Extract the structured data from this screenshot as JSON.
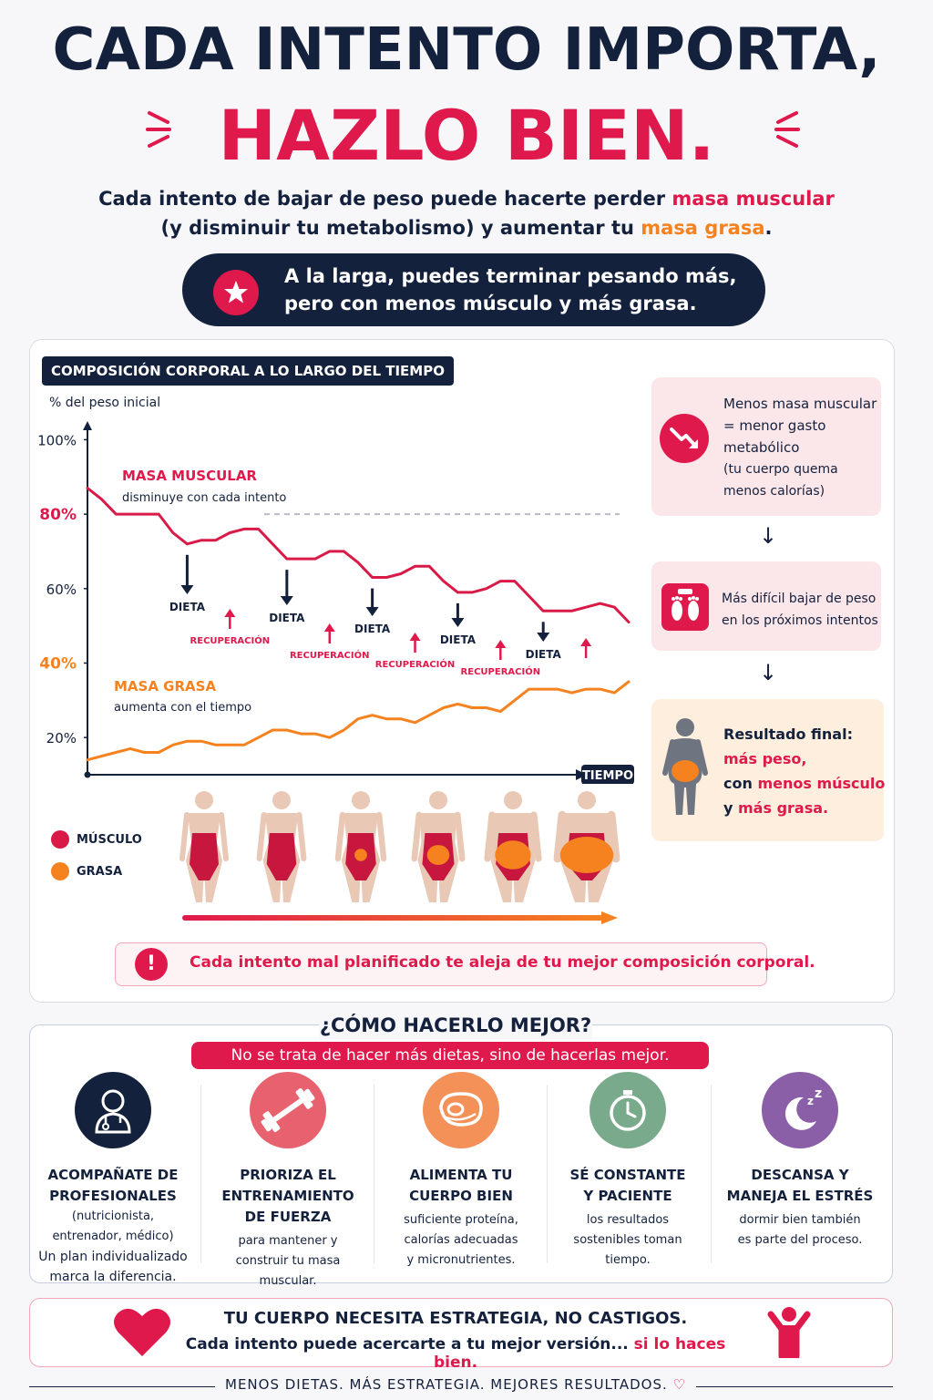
{
  "header": {
    "title_line1": "CADA INTENTO IMPORTA,",
    "title_line2": "HAZLO BIEN.",
    "subtitle_part1": "Cada intento de bajar de peso puede hacerte perder ",
    "subtitle_highlight1": "masa muscular",
    "subtitle_part2": "(y disminuir tu metabolismo) y aumentar tu ",
    "subtitle_highlight2": "masa grasa",
    "subtitle_end": ".",
    "banner_line1": "A la larga, puedes terminar pesando más,",
    "banner_line2": "pero con menos músculo y más grasa."
  },
  "chart": {
    "title": "COMPOSICIÓN CORPORAL A LO LARGO DEL TIEMPO",
    "y_axis_title": "% del peso inicial",
    "x_axis_label": "TIEMPO",
    "muscle_label": "MASA MUSCULAR",
    "muscle_caption": "disminuye con cada intento",
    "fat_label": "MASA GRASA",
    "fat_caption": "aumenta con el tiempo",
    "diet_label": "DIETA",
    "recovery_label": "RECUPERACIÓN"
  },
  "chart_data": {
    "type": "line",
    "xlabel": "TIEMPO",
    "ylabel": "% del peso inicial",
    "ylim": [
      10,
      105
    ],
    "y_ticks": [
      "100%",
      "80%",
      "60%",
      "40%",
      "20%"
    ],
    "y_tick_values": [
      100,
      80,
      60,
      40,
      20
    ],
    "highlighted_ticks": [
      "80%",
      "40%"
    ],
    "x": [
      0,
      1,
      2,
      3,
      4,
      5,
      6,
      7,
      8,
      9,
      10,
      11,
      12,
      13,
      14,
      15,
      16,
      17,
      18,
      19,
      20,
      21,
      22,
      23,
      24,
      25,
      26,
      27,
      28,
      29,
      30,
      31,
      32,
      33,
      34,
      35,
      36,
      37,
      38
    ],
    "series": [
      {
        "name": "MASA MUSCULAR",
        "color": "#d91a47",
        "values": [
          87,
          84,
          80,
          80,
          80,
          80,
          75,
          72,
          73,
          73,
          75,
          76,
          76,
          72,
          68,
          68,
          68,
          70,
          70,
          67,
          63,
          63,
          64,
          66,
          66,
          62,
          59,
          59,
          60,
          62,
          62,
          58,
          54,
          54,
          54,
          55,
          56,
          55,
          51
        ]
      },
      {
        "name": "MASA GRASA",
        "color": "#f5821f",
        "values": [
          14,
          15,
          16,
          17,
          16,
          16,
          18,
          19,
          19,
          18,
          18,
          18,
          20,
          22,
          22,
          21,
          21,
          20,
          22,
          25,
          26,
          25,
          25,
          24,
          26,
          28,
          29,
          28,
          28,
          27,
          30,
          33,
          33,
          33,
          32,
          33,
          33,
          32,
          35
        ]
      }
    ],
    "reference_line": 80,
    "diet_events": [
      1,
      2,
      3,
      4,
      5
    ],
    "recovery_events": [
      1,
      2,
      3,
      4,
      5
    ]
  },
  "legend": {
    "muscle": "MÚSCULO",
    "fat": "GRASA",
    "muscle_color": "#d91a47",
    "fat_color": "#f5821f"
  },
  "cards": {
    "card1_line1": "Menos masa muscular",
    "card1_line2": "= menor gasto",
    "card1_line3": "metabólico",
    "card1_line4": "(tu cuerpo quema",
    "card1_line5": "menos calorías)",
    "card2_line1": "Más difícil bajar de peso",
    "card2_line2": "en los próximos intentos",
    "card3_title": "Resultado final:",
    "card3_line1": "más peso,",
    "card3_line2_prefix": "con ",
    "card3_line2_hl": "menos músculo",
    "card3_line3_prefix": "y ",
    "card3_line3_hl": "más grasa."
  },
  "warning": "Cada intento mal planificado te aleja de tu mejor composición corporal.",
  "how": {
    "title": "¿CÓMO HACERLO MEJOR?",
    "subtitle": "No se trata de hacer más dietas, sino de hacerlas mejor.",
    "tips": [
      {
        "icon": "doctor-icon",
        "color": "#14213d",
        "title1": "ACOMPAÑATE DE",
        "title2": "PROFESIONALES",
        "body1": "(nutricionista,",
        "body2": "entrenador, médico)",
        "body3": "Un plan individualizado",
        "body4": "marca la diferencia."
      },
      {
        "icon": "dumbbell-icon",
        "color": "#e8616f",
        "title1": "PRIORIZA EL",
        "title2": "ENTRENAMIENTO",
        "title3": "DE FUERZA",
        "body1": "para mantener y",
        "body2": "construir tu masa",
        "body3": "muscular."
      },
      {
        "icon": "steak-icon",
        "color": "#f39158",
        "title1": "ALIMENTA TU",
        "title2": "CUERPO BIEN",
        "body1": "suficiente proteína,",
        "body2": "calorías adecuadas",
        "body3": "y micronutrientes."
      },
      {
        "icon": "stopwatch-icon",
        "color": "#7aaa8c",
        "title1": "SÉ CONSTANTE",
        "title2": "Y PACIENTE",
        "body1": "los resultados",
        "body2": "sostenibles toman",
        "body3": "tiempo."
      },
      {
        "icon": "moon-sleep-icon",
        "color": "#8a5fa8",
        "title1": "DESCANSA Y",
        "title2": "MANEJA EL ESTRÉS",
        "body1": "dormir bien también",
        "body2": "es parte del proceso."
      }
    ]
  },
  "bottom": {
    "title": "TU CUERPO NECESITA ESTRATEGIA, NO CASTIGOS.",
    "line_prefix": "Cada intento puede acercarte a tu mejor versión... ",
    "line_highlight": "si lo haces bien.",
    "footer": "MENOS DIETAS. MÁS ESTRATEGIA. MEJORES RESULTADOS."
  }
}
